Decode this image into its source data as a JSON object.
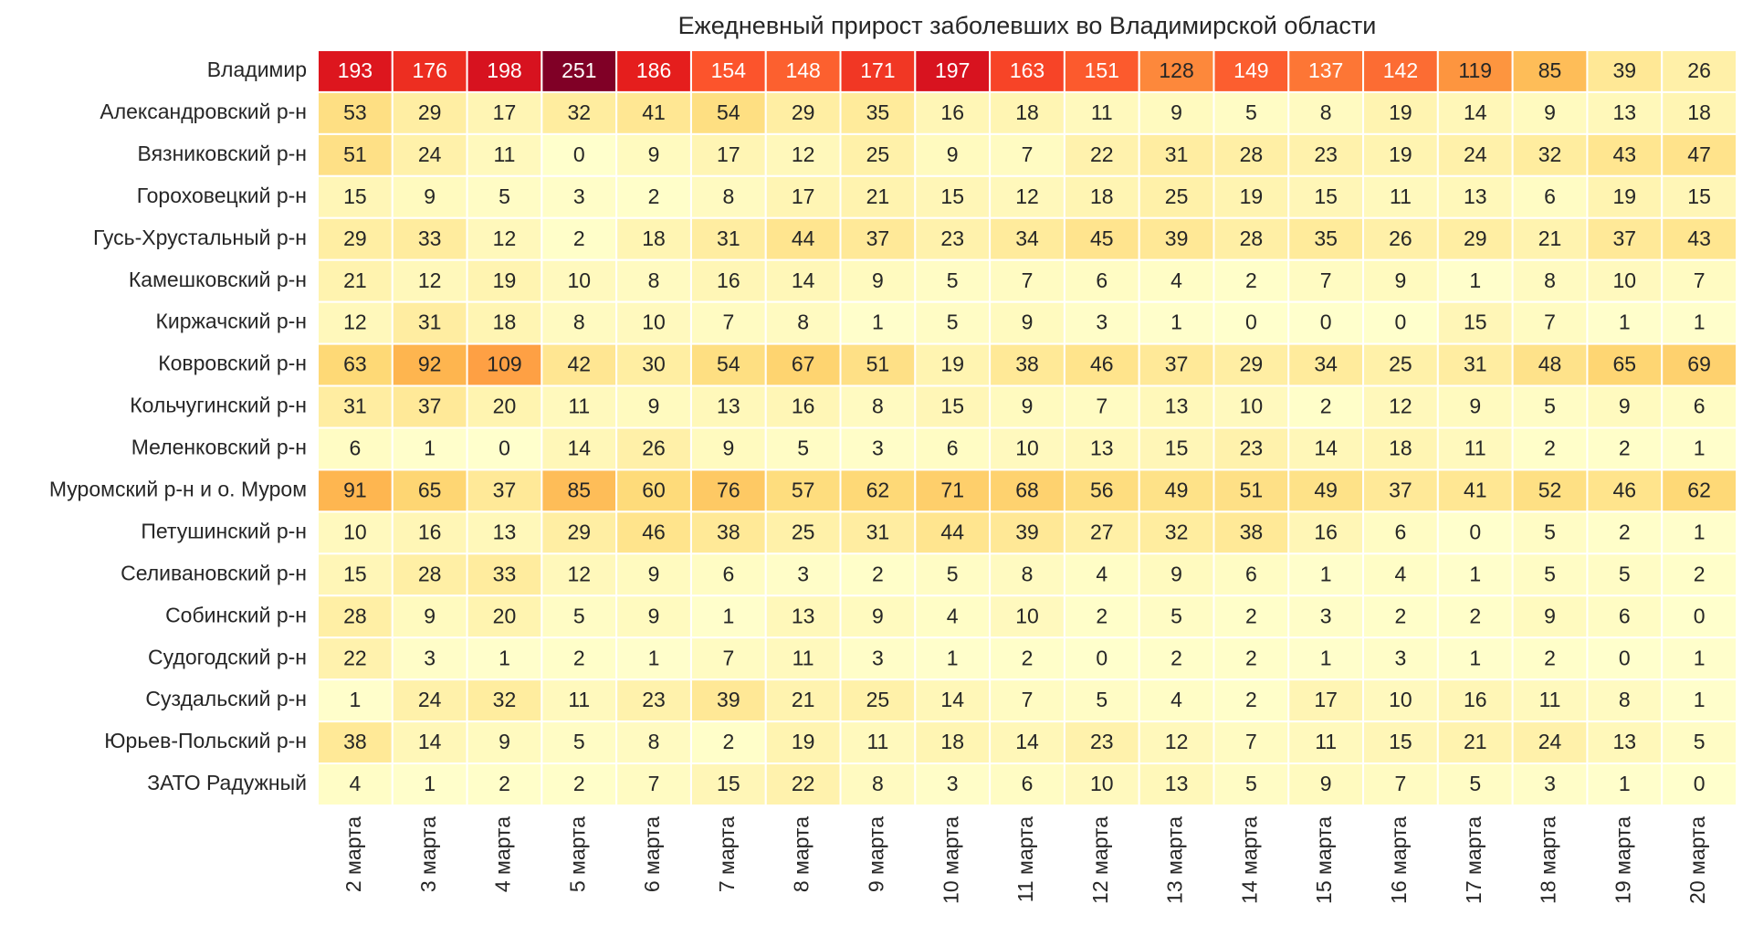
{
  "chart_data": {
    "type": "heatmap",
    "title": "Ежедневный прирост заболевших во Владимирской области",
    "x": [
      "2 марта",
      "3 марта",
      "4 марта",
      "5 марта",
      "6 марта",
      "7 марта",
      "8 марта",
      "9 марта",
      "10 марта",
      "11 марта",
      "12 марта",
      "13 марта",
      "14 марта",
      "15 марта",
      "16 марта",
      "17 марта",
      "18 марта",
      "19 марта",
      "20 марта"
    ],
    "y": [
      "Владимир",
      "Александровский р-н",
      "Вязниковский р-н",
      "Гороховецкий р-н",
      "Гусь-Хрустальный р-н",
      "Камешковский р-н",
      "Киржачский р-н",
      "Ковровский р-н",
      "Кольчугинский р-н",
      "Меленковский р-н",
      "Муромский р-н и о. Муром",
      "Петушинский р-н",
      "Селивановский р-н",
      "Собинский р-н",
      "Судогодский р-н",
      "Суздальский р-н",
      "Юрьев-Польский р-н",
      "ЗАТО Радужный"
    ],
    "values": [
      [
        193,
        176,
        198,
        251,
        186,
        154,
        148,
        171,
        197,
        163,
        151,
        128,
        149,
        137,
        142,
        119,
        85,
        39,
        26
      ],
      [
        53,
        29,
        17,
        32,
        41,
        54,
        29,
        35,
        16,
        18,
        11,
        9,
        5,
        8,
        19,
        14,
        9,
        13,
        18
      ],
      [
        51,
        24,
        11,
        0,
        9,
        17,
        12,
        25,
        9,
        7,
        22,
        31,
        28,
        23,
        19,
        24,
        32,
        43,
        47
      ],
      [
        15,
        9,
        5,
        3,
        2,
        8,
        17,
        21,
        15,
        12,
        18,
        25,
        19,
        15,
        11,
        13,
        6,
        19,
        15
      ],
      [
        29,
        33,
        12,
        2,
        18,
        31,
        44,
        37,
        23,
        34,
        45,
        39,
        28,
        35,
        26,
        29,
        21,
        37,
        43
      ],
      [
        21,
        12,
        19,
        10,
        8,
        16,
        14,
        9,
        5,
        7,
        6,
        4,
        2,
        7,
        9,
        1,
        8,
        10,
        7
      ],
      [
        12,
        31,
        18,
        8,
        10,
        7,
        8,
        1,
        5,
        9,
        3,
        1,
        0,
        0,
        0,
        15,
        7,
        1,
        1
      ],
      [
        63,
        92,
        109,
        42,
        30,
        54,
        67,
        51,
        19,
        38,
        46,
        37,
        29,
        34,
        25,
        31,
        48,
        65,
        69
      ],
      [
        31,
        37,
        20,
        11,
        9,
        13,
        16,
        8,
        15,
        9,
        7,
        13,
        10,
        2,
        12,
        9,
        5,
        9,
        6
      ],
      [
        6,
        1,
        0,
        14,
        26,
        9,
        5,
        3,
        6,
        10,
        13,
        15,
        23,
        14,
        18,
        11,
        2,
        2,
        1
      ],
      [
        91,
        65,
        37,
        85,
        60,
        76,
        57,
        62,
        71,
        68,
        56,
        49,
        51,
        49,
        37,
        41,
        52,
        46,
        62
      ],
      [
        10,
        16,
        13,
        29,
        46,
        38,
        25,
        31,
        44,
        39,
        27,
        32,
        38,
        16,
        6,
        0,
        5,
        2,
        1
      ],
      [
        15,
        28,
        33,
        12,
        9,
        6,
        3,
        2,
        5,
        8,
        4,
        9,
        6,
        1,
        4,
        1,
        5,
        5,
        2
      ],
      [
        28,
        9,
        20,
        5,
        9,
        1,
        13,
        9,
        4,
        10,
        2,
        5,
        2,
        3,
        2,
        2,
        9,
        6,
        0
      ],
      [
        22,
        3,
        1,
        2,
        1,
        7,
        11,
        3,
        1,
        2,
        0,
        2,
        2,
        1,
        3,
        1,
        2,
        0,
        1
      ],
      [
        1,
        24,
        32,
        11,
        23,
        39,
        21,
        25,
        14,
        7,
        5,
        4,
        2,
        17,
        10,
        16,
        11,
        8,
        1
      ],
      [
        38,
        14,
        9,
        5,
        8,
        2,
        19,
        11,
        18,
        14,
        23,
        12,
        7,
        11,
        15,
        21,
        24,
        13,
        5
      ],
      [
        4,
        1,
        2,
        2,
        7,
        15,
        22,
        8,
        3,
        6,
        10,
        13,
        5,
        9,
        7,
        5,
        3,
        1,
        0
      ]
    ],
    "colormap": [
      "#ffffcc",
      "#ffeda0",
      "#fed976",
      "#feb24c",
      "#fd8d3c",
      "#fc4e2a",
      "#e31a1c",
      "#bd0026",
      "#800026"
    ]
  }
}
